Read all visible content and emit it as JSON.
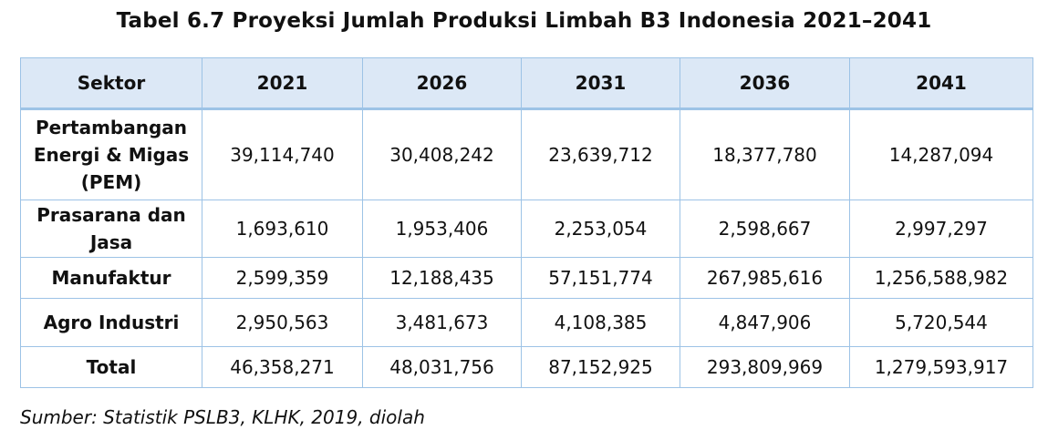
{
  "document": {
    "title": "Tabel 6.7 Proyeksi Jumlah Produksi Limbah B3 Indonesia 2021–2041",
    "source": "Sumber: Statistik PSLB3, KLHK, 2019, diolah"
  },
  "table": {
    "headers": [
      "Sektor",
      "2021",
      "2026",
      "2031",
      "2036",
      "2041"
    ],
    "rows": [
      {
        "sector_lines": [
          "Pertambangan",
          "Energi & Migas",
          "(PEM)"
        ],
        "values": [
          "39,114,740",
          "30,408,242",
          "23,639,712",
          "18,377,780",
          "14,287,094"
        ]
      },
      {
        "sector_lines": [
          "Prasarana dan",
          "Jasa"
        ],
        "values": [
          "1,693,610",
          "1,953,406",
          "2,253,054",
          "2,598,667",
          "2,997,297"
        ]
      },
      {
        "sector_lines": [
          "Manufaktur"
        ],
        "values": [
          "2,599,359",
          "12,188,435",
          "57,151,774",
          "267,985,616",
          "1,256,588,982"
        ]
      },
      {
        "sector_lines": [
          "Agro Industri"
        ],
        "values": [
          "2,950,563",
          "3,481,673",
          "4,108,385",
          "4,847,906",
          "5,720,544"
        ]
      },
      {
        "sector_lines": [
          "Total"
        ],
        "values": [
          "46,358,271",
          "48,031,756",
          "87,152,925",
          "293,809,969",
          "1,279,593,917"
        ]
      }
    ]
  },
  "colors": {
    "header_background": "#dce8f6",
    "border": "#9dc3e6"
  }
}
